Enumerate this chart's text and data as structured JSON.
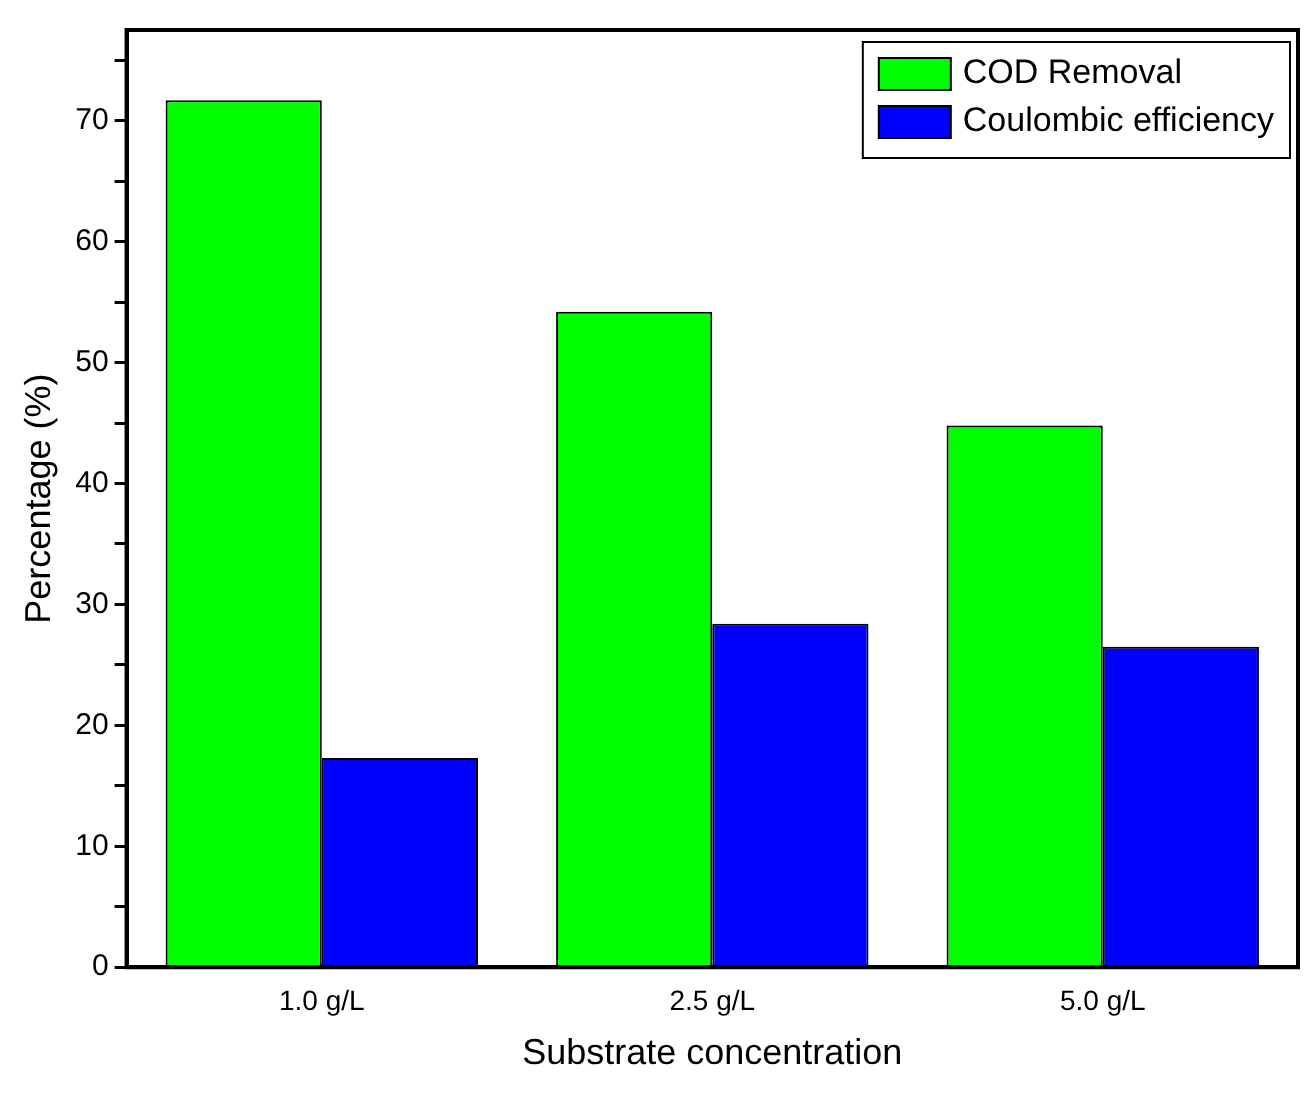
{
  "chart_data": {
    "type": "bar",
    "xlabel": "Substrate concentration",
    "ylabel": "Percentage (%)",
    "categories": [
      "1.0 g/L",
      "2.5 g/L",
      "5.0 g/L"
    ],
    "series": [
      {
        "name": "COD Removal",
        "color": "#00ff00",
        "values": [
          71.7,
          54.2,
          44.8
        ]
      },
      {
        "name": "Coulombic efficiency",
        "color": "#0000ff",
        "values": [
          17.3,
          28.4,
          26.5
        ]
      }
    ],
    "ylim": [
      0,
      77.5
    ],
    "yticks": [
      0,
      {
        "value": 5,
        "label": null
      },
      10,
      {
        "value": 15,
        "label": null
      },
      20,
      {
        "value": 25,
        "label": null
      },
      30,
      {
        "value": 35,
        "label": null
      },
      40,
      {
        "value": 45,
        "label": null
      },
      50,
      {
        "value": 55,
        "label": null
      },
      60,
      {
        "value": 65,
        "label": null
      },
      70,
      {
        "value": 75,
        "label": null
      }
    ],
    "grid": false,
    "legend": "top right"
  }
}
